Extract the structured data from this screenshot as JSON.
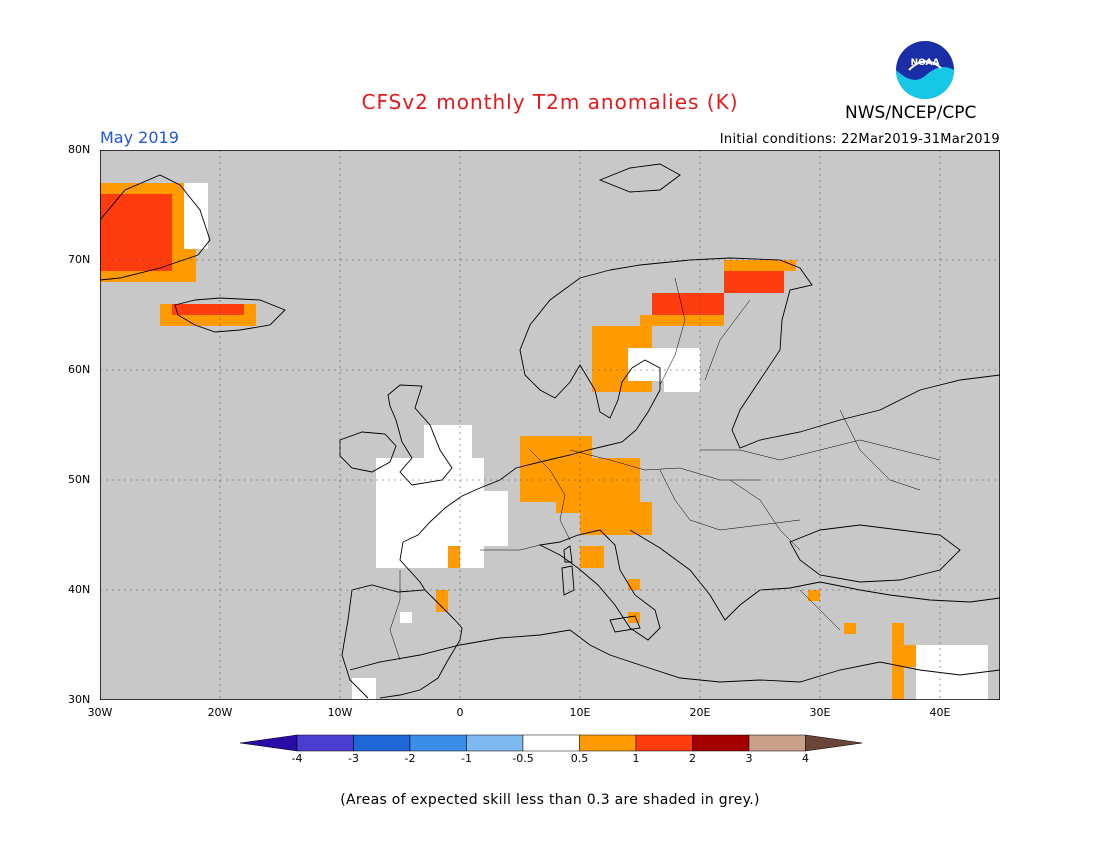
{
  "header": {
    "title": "CFSv2 monthly T2m anomalies (K)",
    "org": "NWS/NCEP/CPC",
    "logo_text": "NOAA",
    "month": "May 2019",
    "initial_conditions": "Initial conditions: 22Mar2019-31Mar2019"
  },
  "map": {
    "lon_range": [
      -30,
      45
    ],
    "lat_range": [
      30,
      80
    ],
    "background_color": "#c8c8c8",
    "grid_lines": true,
    "lon_ticks": [
      "30W",
      "20W",
      "10W",
      "0",
      "10E",
      "20E",
      "30E",
      "40E"
    ],
    "lat_ticks": [
      "80N",
      "70N",
      "60N",
      "50N",
      "40N",
      "30N"
    ]
  },
  "colorbar": {
    "labels": [
      "-4",
      "-3",
      "-2",
      "-1",
      "-0.5",
      "0.5",
      "1",
      "2",
      "3",
      "4"
    ],
    "colors": [
      "#2a0ca6",
      "#4b3dd1",
      "#1f66d6",
      "#3b8de8",
      "#7eb9f0",
      "#ffffff",
      "#ff9a00",
      "#ff3c0e",
      "#a50000",
      "#c9a08a",
      "#6b4538"
    ]
  },
  "footnote": "(Areas of expected skill less than 0.3 are shaded in grey.)"
}
